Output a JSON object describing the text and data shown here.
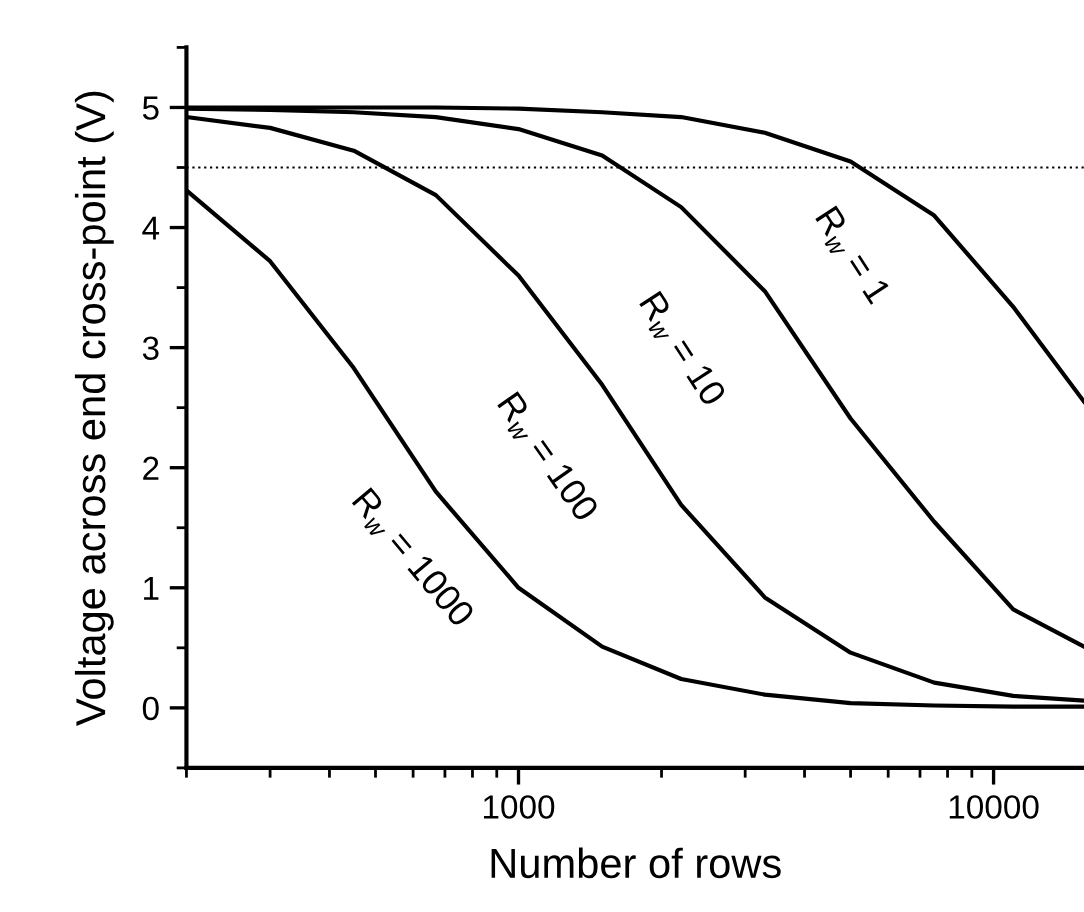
{
  "chart_data": {
    "type": "line",
    "xlabel": "Number of rows",
    "ylabel": "Voltage across end cross-point (V)",
    "log": "x",
    "xlim": [
      200,
      15500
    ],
    "xticks": [
      1000,
      10000
    ],
    "ylim": [
      -0.5,
      5.5
    ],
    "yticks": [
      0,
      1,
      2,
      3,
      4,
      5
    ],
    "x": [
      200,
      300,
      450,
      670,
      1000,
      1500,
      2200,
      3300,
      5000,
      7500,
      11000,
      15500
    ],
    "series": [
      {
        "name": "R$_{w}$ = 1",
        "color": "#000000",
        "values": [
          5.0,
          5.0,
          5.0,
          5.0,
          4.99,
          4.96,
          4.92,
          4.79,
          4.55,
          4.1,
          3.34,
          2.55
        ]
      },
      {
        "name": "R$_{w}$ = 10",
        "color": "#000000",
        "values": [
          4.99,
          4.98,
          4.96,
          4.92,
          4.82,
          4.6,
          4.17,
          3.47,
          2.41,
          1.55,
          0.82,
          0.51
        ]
      },
      {
        "name": "R$_{w}$ = 100",
        "color": "#000000",
        "values": [
          4.92,
          4.83,
          4.64,
          4.27,
          3.6,
          2.69,
          1.69,
          0.92,
          0.46,
          0.21,
          0.1,
          0.06
        ]
      },
      {
        "name": "R$_{w}$ = 1000",
        "color": "#000000",
        "values": [
          4.31,
          3.72,
          2.83,
          1.8,
          1.0,
          0.51,
          0.24,
          0.11,
          0.04,
          0.02,
          0.01,
          0.01
        ]
      }
    ],
    "ref_lines": [
      {
        "axis": "y",
        "value": 4.5,
        "color": "#000000",
        "line_style": "dotted"
      }
    ],
    "grid": false,
    "legend": false,
    "marker": "none",
    "line_style": "solid"
  }
}
